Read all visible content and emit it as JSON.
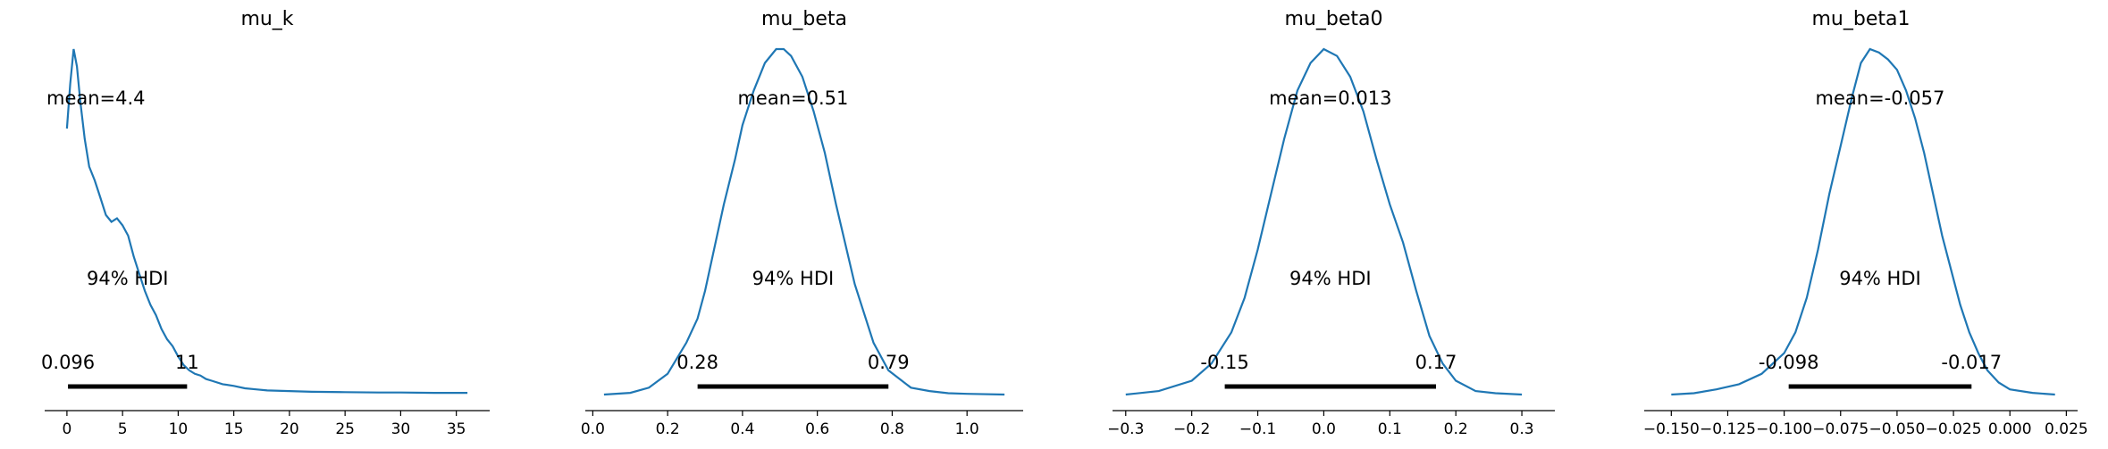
{
  "chart_data": [
    {
      "type": "line",
      "title": "mu_k",
      "xlim": [
        -2,
        38
      ],
      "xticks": [
        0,
        5,
        10,
        15,
        20,
        25,
        30,
        35
      ],
      "xtick_labels": [
        "0",
        "5",
        "10",
        "15",
        "20",
        "25",
        "30",
        "35"
      ],
      "mean_label": "mean=4.4",
      "hdi_label": "94% HDI",
      "hdi_low": 0.096,
      "hdi_high": 10.8,
      "hdi_low_label": "0.096",
      "hdi_high_label": "11",
      "x": [
        0,
        0.3,
        0.6,
        0.9,
        1.2,
        1.6,
        2.0,
        2.5,
        3.0,
        3.5,
        4.0,
        4.5,
        5.0,
        5.5,
        6.0,
        6.5,
        7.0,
        7.5,
        8.0,
        8.5,
        9.0,
        9.5,
        10.0,
        10.5,
        11.0,
        11.5,
        12.0,
        12.5,
        13.0,
        14.0,
        15.0,
        16.0,
        17.0,
        18.0,
        20.0,
        22.0,
        25.0,
        28.0,
        30.0,
        33.0,
        36.0
      ],
      "y": [
        0.77,
        0.9,
        1.0,
        0.95,
        0.85,
        0.74,
        0.66,
        0.62,
        0.57,
        0.52,
        0.5,
        0.51,
        0.49,
        0.46,
        0.4,
        0.35,
        0.3,
        0.26,
        0.23,
        0.19,
        0.16,
        0.14,
        0.11,
        0.085,
        0.07,
        0.06,
        0.055,
        0.045,
        0.04,
        0.03,
        0.025,
        0.018,
        0.015,
        0.012,
        0.01,
        0.008,
        0.007,
        0.006,
        0.006,
        0.005,
        0.005
      ]
    },
    {
      "type": "line",
      "title": "mu_beta",
      "xlim": [
        -0.02,
        1.15
      ],
      "xticks": [
        0.0,
        0.2,
        0.4,
        0.6,
        0.8,
        1.0
      ],
      "xtick_labels": [
        "0.0",
        "0.2",
        "0.4",
        "0.6",
        "0.8",
        "1.0"
      ],
      "mean_label": "mean=0.51",
      "hdi_label": "94% HDI",
      "hdi_low": 0.28,
      "hdi_high": 0.79,
      "hdi_low_label": "0.28",
      "hdi_high_label": "0.79",
      "x": [
        0.03,
        0.1,
        0.15,
        0.2,
        0.25,
        0.28,
        0.3,
        0.35,
        0.38,
        0.4,
        0.43,
        0.46,
        0.49,
        0.51,
        0.53,
        0.56,
        0.59,
        0.62,
        0.65,
        0.7,
        0.75,
        0.79,
        0.85,
        0.9,
        0.95,
        1.0,
        1.1
      ],
      "y": [
        0.0,
        0.005,
        0.02,
        0.06,
        0.15,
        0.22,
        0.3,
        0.55,
        0.68,
        0.78,
        0.88,
        0.96,
        1.0,
        1.0,
        0.98,
        0.92,
        0.82,
        0.7,
        0.55,
        0.32,
        0.15,
        0.07,
        0.02,
        0.01,
        0.004,
        0.002,
        0.0
      ]
    },
    {
      "type": "line",
      "title": "mu_beta0",
      "xlim": [
        -0.32,
        0.35
      ],
      "xticks": [
        -0.3,
        -0.2,
        -0.1,
        0.0,
        0.1,
        0.2,
        0.3
      ],
      "xtick_labels": [
        "−0.3",
        "−0.2",
        "−0.1",
        "0.0",
        "0.1",
        "0.2",
        "0.3"
      ],
      "mean_label": "mean=0.013",
      "hdi_label": "94% HDI",
      "hdi_low": -0.15,
      "hdi_high": 0.17,
      "hdi_low_label": "-0.15",
      "hdi_high_label": "0.17",
      "x": [
        -0.3,
        -0.25,
        -0.2,
        -0.17,
        -0.14,
        -0.12,
        -0.1,
        -0.08,
        -0.06,
        -0.04,
        -0.02,
        0.0,
        0.02,
        0.04,
        0.06,
        0.08,
        0.1,
        0.12,
        0.14,
        0.16,
        0.18,
        0.2,
        0.23,
        0.26,
        0.3
      ],
      "y": [
        0.0,
        0.01,
        0.04,
        0.09,
        0.18,
        0.28,
        0.42,
        0.58,
        0.74,
        0.88,
        0.96,
        1.0,
        0.98,
        0.92,
        0.82,
        0.68,
        0.55,
        0.44,
        0.3,
        0.17,
        0.09,
        0.04,
        0.01,
        0.004,
        0.0
      ]
    },
    {
      "type": "line",
      "title": "mu_beta1",
      "xlim": [
        -0.162,
        0.03
      ],
      "xticks": [
        -0.15,
        -0.125,
        -0.1,
        -0.075,
        -0.05,
        -0.025,
        0.0,
        0.025
      ],
      "xtick_labels": [
        "−0.150",
        "−0.125",
        "−0.100",
        "−0.075",
        "−0.050",
        "−0.025",
        "0.000",
        "0.025"
      ],
      "mean_label": "mean=-0.057",
      "hdi_label": "94% HDI",
      "hdi_low": -0.098,
      "hdi_high": -0.017,
      "hdi_low_label": "-0.098",
      "hdi_high_label": "-0.017",
      "x": [
        -0.15,
        -0.14,
        -0.13,
        -0.12,
        -0.11,
        -0.1,
        -0.095,
        -0.09,
        -0.085,
        -0.08,
        -0.075,
        -0.07,
        -0.066,
        -0.062,
        -0.058,
        -0.054,
        -0.05,
        -0.046,
        -0.042,
        -0.038,
        -0.034,
        -0.03,
        -0.026,
        -0.022,
        -0.018,
        -0.014,
        -0.01,
        -0.005,
        0.0,
        0.01,
        0.02
      ],
      "y": [
        0.0,
        0.004,
        0.015,
        0.03,
        0.06,
        0.12,
        0.18,
        0.28,
        0.42,
        0.58,
        0.72,
        0.86,
        0.96,
        1.0,
        0.99,
        0.97,
        0.94,
        0.88,
        0.8,
        0.7,
        0.58,
        0.46,
        0.36,
        0.26,
        0.18,
        0.12,
        0.07,
        0.035,
        0.015,
        0.005,
        0.0
      ]
    }
  ]
}
